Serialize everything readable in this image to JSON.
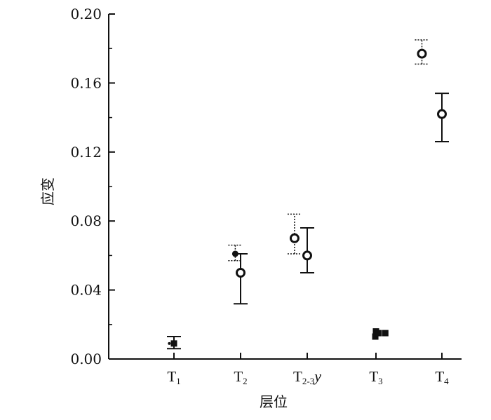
{
  "chart_data": {
    "type": "scatter",
    "title": "",
    "xlabel": "层位",
    "ylabel": "应变",
    "ylim": [
      0,
      0.2
    ],
    "yticks": [
      "0.00",
      "0.04",
      "0.08",
      "0.12",
      "0.16",
      "0.20"
    ],
    "categories": [
      {
        "main": "T",
        "sub": "1",
        "suffix": ""
      },
      {
        "main": "T",
        "sub": "2",
        "suffix": ""
      },
      {
        "main": "T",
        "sub": "2-3",
        "suffix": "y"
      },
      {
        "main": "T",
        "sub": "3",
        "suffix": ""
      },
      {
        "main": "T",
        "sub": "4",
        "suffix": ""
      }
    ],
    "points": [
      {
        "category": 0,
        "offset": 0.0,
        "y": 0.009,
        "err_low": 0.006,
        "err_high": 0.013,
        "marker": "filled-square",
        "line": "solid"
      },
      {
        "category": 0,
        "offset": -0.07,
        "y": 0.009,
        "err_low": null,
        "err_high": null,
        "marker": "small-dot",
        "line": "none"
      },
      {
        "category": 1,
        "offset": -0.08,
        "y": 0.061,
        "err_low": 0.057,
        "err_high": 0.066,
        "marker": "filled-circle",
        "line": "dotted"
      },
      {
        "category": 1,
        "offset": 0.0,
        "y": 0.05,
        "err_low": 0.032,
        "err_high": 0.061,
        "marker": "open-circle",
        "line": "solid"
      },
      {
        "category": 2,
        "offset": -0.19,
        "y": 0.07,
        "err_low": 0.061,
        "err_high": 0.084,
        "marker": "open-circle",
        "line": "dotted"
      },
      {
        "category": 2,
        "offset": 0.0,
        "y": 0.06,
        "err_low": 0.05,
        "err_high": 0.076,
        "marker": "open-circle",
        "line": "solid"
      },
      {
        "category": 3,
        "offset": -0.01,
        "y": 0.013,
        "err_low": null,
        "err_high": null,
        "marker": "filled-square",
        "line": "none"
      },
      {
        "category": 3,
        "offset": 0.0,
        "y": 0.016,
        "err_low": null,
        "err_high": null,
        "marker": "filled-square",
        "line": "none"
      },
      {
        "category": 3,
        "offset": 0.04,
        "y": 0.015,
        "err_low": null,
        "err_high": null,
        "marker": "filled-square",
        "line": "none"
      },
      {
        "category": 3,
        "offset": 0.14,
        "y": 0.015,
        "err_low": null,
        "err_high": null,
        "marker": "filled-square",
        "line": "none"
      },
      {
        "category": 4,
        "offset": -0.3,
        "y": 0.177,
        "err_low": 0.171,
        "err_high": 0.185,
        "marker": "open-circle",
        "line": "dotted"
      },
      {
        "category": 4,
        "offset": 0.0,
        "y": 0.142,
        "err_low": 0.126,
        "err_high": 0.154,
        "marker": "open-circle",
        "line": "solid"
      }
    ],
    "grid": false,
    "legend": "none",
    "colors": {
      "ink": "#111111",
      "background": "#ffffff"
    }
  }
}
